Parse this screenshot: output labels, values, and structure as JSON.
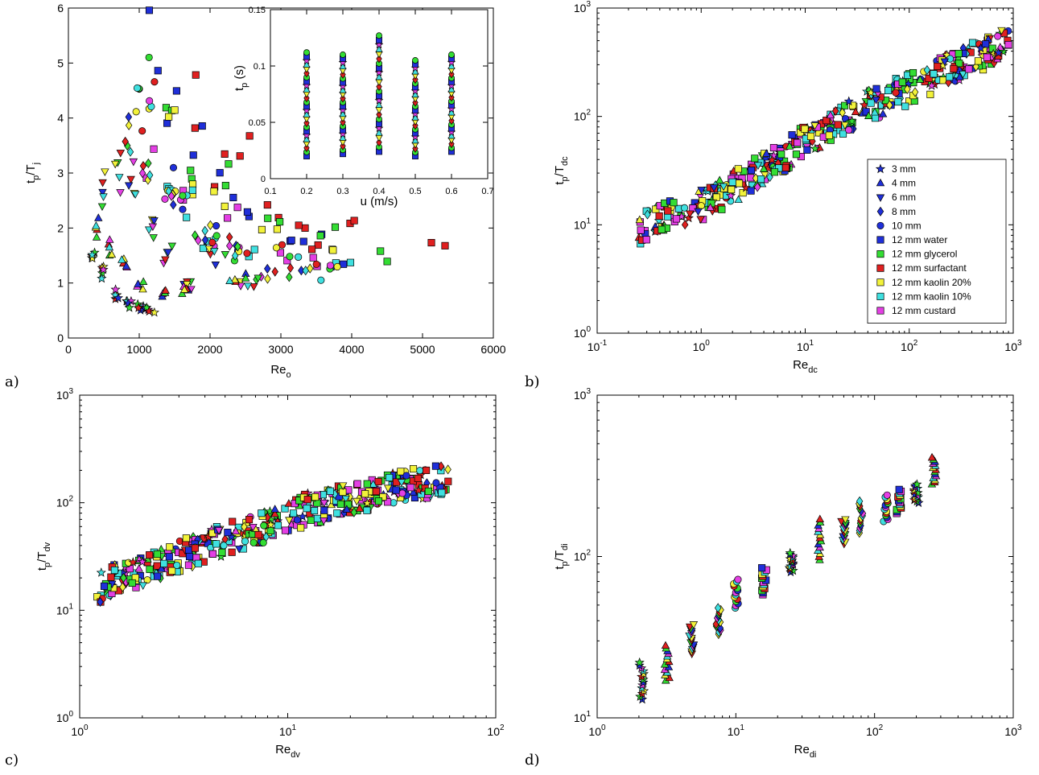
{
  "panel_letters": [
    "a)",
    "b)",
    "c)",
    "d)"
  ],
  "legend": {
    "placement": "panel b, lower-right",
    "entries": [
      {
        "label": "3 mm",
        "marker": "star",
        "color": "#1f2fd9"
      },
      {
        "label": "4 mm",
        "marker": "triangle-up",
        "color": "#1f2fd9"
      },
      {
        "label": "6 mm",
        "marker": "triangle-down",
        "color": "#1f2fd9"
      },
      {
        "label": "8 mm",
        "marker": "diamond",
        "color": "#1f2fd9"
      },
      {
        "label": "10 mm",
        "marker": "circle",
        "color": "#1f2fd9"
      },
      {
        "label": "12 mm water",
        "marker": "square",
        "color": "#1f2fd9"
      },
      {
        "label": "12 mm glycerol",
        "marker": "square",
        "color": "#33dd33"
      },
      {
        "label": "12 mm surfactant",
        "marker": "square",
        "color": "#e02020"
      },
      {
        "label": "12 mm kaolin 20%",
        "marker": "square",
        "color": "#f2f23a"
      },
      {
        "label": "12 mm kaolin 10%",
        "marker": "square",
        "color": "#3fe0e0"
      },
      {
        "label": "12 mm custard",
        "marker": "square",
        "color": "#e43fe4"
      }
    ]
  },
  "chart_data": [
    {
      "panel": "a)",
      "type": "scatter",
      "xscale": "linear",
      "yscale": "linear",
      "xlim": [
        0,
        6000
      ],
      "ylim": [
        0,
        6
      ],
      "xticks": [
        "0",
        "1000",
        "2000",
        "3000",
        "4000",
        "5000",
        "6000"
      ],
      "yticks": [
        "0",
        "1",
        "2",
        "3",
        "4",
        "5",
        "6"
      ],
      "xlabel": "Re",
      "xlabel_sub": "o",
      "ylabel": "t",
      "ylabel_sub": "p",
      "ylabel_mid": "/T",
      "ylabel_sub2": "j",
      "series": [
        {
          "name": "12 mm water",
          "x": [
            1200,
            1480,
            1800,
            2200,
            2600,
            3000,
            3400,
            3700
          ],
          "y": [
            5.5,
            4.4,
            3.6,
            2.8,
            2.5,
            1.9,
            1.7,
            1.4
          ]
        },
        {
          "name": "12 mm surfactant",
          "x": [
            1700,
            2100,
            2500,
            2800,
            3300,
            3600,
            4200,
            5050
          ],
          "y": [
            4.3,
            3.05,
            3.6,
            2.3,
            2.0,
            1.6,
            2.05,
            1.75
          ]
        },
        {
          "name": "12 mm glycerol",
          "x": [
            1450,
            1800,
            2200,
            2850,
            3600,
            4400
          ],
          "y": [
            4.6,
            3.1,
            3.1,
            2.3,
            1.8,
            1.5
          ]
        },
        {
          "name": "12 mm kaolin 20%",
          "x": [
            1450,
            1800,
            2150,
            2900,
            3650
          ],
          "y": [
            4.1,
            2.7,
            2.7,
            2.0,
            1.8
          ]
        },
        {
          "name": "12 mm kaolin 10%",
          "x": [
            1350,
            1700,
            2000,
            2700,
            3850
          ],
          "y": [
            2.6,
            2.4,
            1.8,
            1.5,
            1.3
          ]
        },
        {
          "name": "12 mm custard",
          "x": [
            1150,
            1550,
            2300,
            2950,
            3350
          ],
          "y": [
            3.3,
            2.7,
            2.3,
            1.4,
            1.4
          ]
        },
        {
          "name": "10 mm",
          "x": [
            1000,
            1200,
            1400,
            1600,
            2000,
            2400,
            3100,
            3700
          ],
          "y": [
            4.3,
            4.6,
            2.8,
            2.5,
            1.9,
            1.5,
            1.6,
            1.2
          ]
        },
        {
          "name": "8 mm",
          "x": [
            850,
            1100,
            1500,
            1900,
            2300,
            2800,
            3300
          ],
          "y": [
            3.7,
            3.2,
            2.4,
            2.0,
            1.7,
            1.2,
            1.2
          ]
        },
        {
          "name": "6 mm",
          "x": [
            500,
            700,
            900,
            1150,
            1400,
            1700,
            2100,
            2550
          ],
          "y": [
            2.7,
            3.0,
            2.9,
            2.0,
            1.5,
            1.0,
            1.5,
            1.0
          ]
        },
        {
          "name": "4 mm",
          "x": [
            400,
            600,
            800,
            1000,
            1300,
            1600,
            2400
          ],
          "y": [
            2.0,
            1.6,
            1.4,
            1.0,
            0.8,
            0.9,
            1.1
          ]
        },
        {
          "name": "3 mm",
          "x": [
            350,
            500,
            700,
            850,
            1000,
            1150
          ],
          "y": [
            1.5,
            1.2,
            0.8,
            0.6,
            0.55,
            0.5
          ]
        }
      ],
      "inset": {
        "type": "scatter",
        "xlim": [
          0.1,
          0.7
        ],
        "ylim": [
          0,
          0.15
        ],
        "xticks": [
          "0.1",
          "0.2",
          "0.3",
          "0.4",
          "0.5",
          "0.6",
          "0.7"
        ],
        "yticks": [
          "0",
          "0.05",
          "0.1",
          "0.15"
        ],
        "xlabel": "u (m/s)",
        "ylabel": "t",
        "ylabel_sub": "p",
        "ylabel_unit": " (s)",
        "columns": [
          {
            "x": 0.2,
            "ymin": 0.02,
            "ymax": 0.112
          },
          {
            "x": 0.3,
            "ymin": 0.022,
            "ymax": 0.11
          },
          {
            "x": 0.4,
            "ymin": 0.024,
            "ymax": 0.127
          },
          {
            "x": 0.5,
            "ymin": 0.02,
            "ymax": 0.105
          },
          {
            "x": 0.6,
            "ymin": 0.024,
            "ymax": 0.11
          }
        ]
      }
    },
    {
      "panel": "b)",
      "type": "scatter",
      "xscale": "log",
      "yscale": "log",
      "xlim": [
        0.1,
        1000
      ],
      "ylim": [
        1,
        1000
      ],
      "xticks": [
        {
          "base": "10",
          "exp": "-1"
        },
        {
          "base": "10",
          "exp": "0"
        },
        {
          "base": "10",
          "exp": "1"
        },
        {
          "base": "10",
          "exp": "2"
        },
        {
          "base": "10",
          "exp": "3"
        }
      ],
      "yticks": [
        {
          "base": "10",
          "exp": "0"
        },
        {
          "base": "10",
          "exp": "1"
        },
        {
          "base": "10",
          "exp": "2"
        },
        {
          "base": "10",
          "exp": "3"
        }
      ],
      "xlabel": "Re",
      "xlabel_sub": "dc",
      "ylabel": "t",
      "ylabel_sub": "p",
      "ylabel_mid": "/T",
      "ylabel_sub2": "dc",
      "trend": {
        "x": [
          0.25,
          0.6,
          1.0,
          2.0,
          5.0,
          10,
          30,
          100,
          300,
          900
        ],
        "y": [
          9,
          13,
          15,
          22,
          38,
          60,
          110,
          180,
          300,
          480
        ]
      }
    },
    {
      "panel": "c)",
      "type": "scatter",
      "xscale": "log",
      "yscale": "log",
      "xlim": [
        1,
        100
      ],
      "ylim": [
        1,
        1000
      ],
      "xticks": [
        {
          "base": "10",
          "exp": "0"
        },
        {
          "base": "10",
          "exp": "1"
        },
        {
          "base": "10",
          "exp": "2"
        }
      ],
      "yticks": [
        {
          "base": "10",
          "exp": "0"
        },
        {
          "base": "10",
          "exp": "1"
        },
        {
          "base": "10",
          "exp": "2"
        },
        {
          "base": "10",
          "exp": "3"
        }
      ],
      "xlabel": "Re",
      "xlabel_sub": "dv",
      "ylabel": "t",
      "ylabel_sub": "p",
      "ylabel_mid": "/T",
      "ylabel_sub2": "dv",
      "trend": {
        "x": [
          1.2,
          2,
          3,
          5,
          8,
          12,
          20,
          35,
          60
        ],
        "y": [
          16,
          24,
          32,
          45,
          60,
          85,
          110,
          140,
          170
        ]
      }
    },
    {
      "panel": "d)",
      "type": "scatter",
      "xscale": "log",
      "yscale": "log",
      "xlim": [
        1,
        1000
      ],
      "ylim": [
        10,
        1000
      ],
      "xticks": [
        {
          "base": "10",
          "exp": "0"
        },
        {
          "base": "10",
          "exp": "1"
        },
        {
          "base": "10",
          "exp": "2"
        },
        {
          "base": "10",
          "exp": "3"
        }
      ],
      "yticks": [
        {
          "base": "10",
          "exp": "1"
        },
        {
          "base": "10",
          "exp": "2"
        },
        {
          "base": "10",
          "exp": "3"
        }
      ],
      "xlabel": "Re",
      "xlabel_sub": "di",
      "ylabel": "t",
      "ylabel_sub": "p",
      "ylabel_mid": "/T",
      "ylabel_sub2": "di",
      "columns": [
        {
          "x": 2.1,
          "ymin": 13,
          "ymax": 22
        },
        {
          "x": 3.2,
          "ymin": 17,
          "ymax": 28
        },
        {
          "x": 4.8,
          "ymin": 25,
          "ymax": 38
        },
        {
          "x": 7.5,
          "ymin": 33,
          "ymax": 48
        },
        {
          "x": 10,
          "ymin": 48,
          "ymax": 72
        },
        {
          "x": 16,
          "ymin": 58,
          "ymax": 85
        },
        {
          "x": 25,
          "ymin": 80,
          "ymax": 105
        },
        {
          "x": 40,
          "ymin": 95,
          "ymax": 170
        },
        {
          "x": 60,
          "ymin": 120,
          "ymax": 170
        },
        {
          "x": 80,
          "ymin": 140,
          "ymax": 220
        },
        {
          "x": 120,
          "ymin": 165,
          "ymax": 240
        },
        {
          "x": 150,
          "ymin": 185,
          "ymax": 260
        },
        {
          "x": 200,
          "ymin": 215,
          "ymax": 280
        },
        {
          "x": 270,
          "ymin": 280,
          "ymax": 410
        }
      ]
    }
  ]
}
